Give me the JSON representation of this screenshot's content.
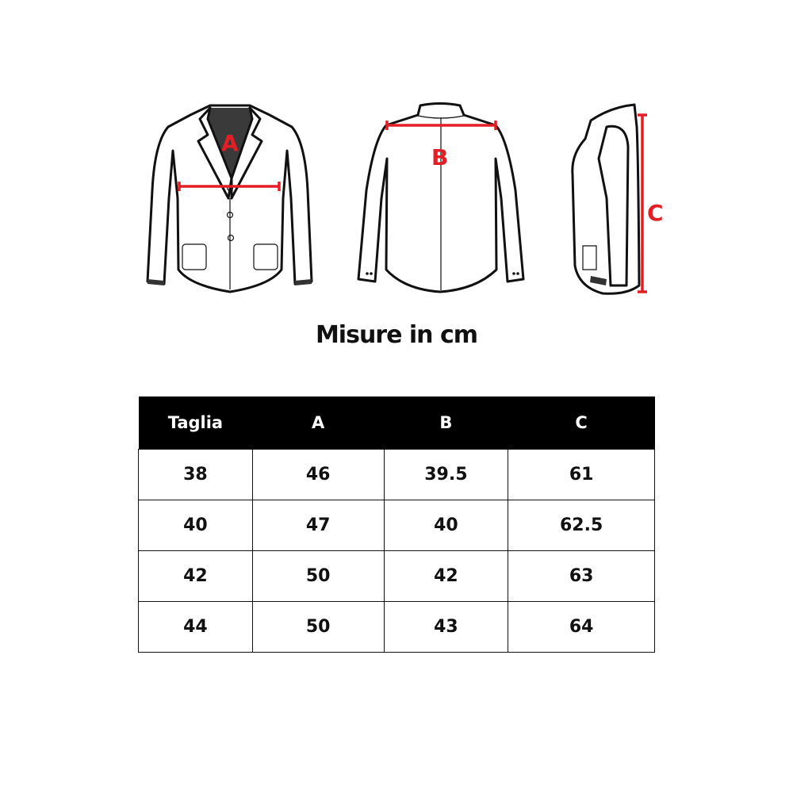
{
  "diagram": {
    "labels": {
      "a": "A",
      "b": "B",
      "c": "C"
    },
    "accent_color": "#e31e24"
  },
  "title": "Misure in cm",
  "table": {
    "headers": [
      "Taglia",
      "A",
      "B",
      "C"
    ],
    "rows": [
      [
        "38",
        "46",
        "39.5",
        "61"
      ],
      [
        "40",
        "47",
        "40",
        "62.5"
      ],
      [
        "42",
        "50",
        "42",
        "63"
      ],
      [
        "44",
        "50",
        "43",
        "64"
      ]
    ]
  }
}
